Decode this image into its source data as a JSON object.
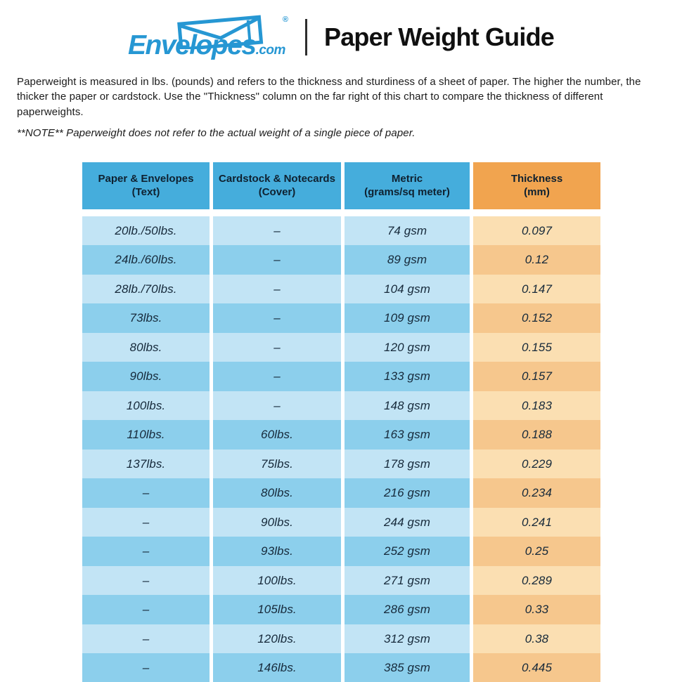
{
  "header": {
    "logo": {
      "brand": "Envelopes",
      "tld": ".com",
      "registered_mark": "®",
      "envelope_icon": "envelope-outline",
      "brand_color": "#2697d3"
    },
    "title": "Paper Weight Guide"
  },
  "intro": {
    "paragraph": "Paperweight is measured in lbs. (pounds) and refers to the thickness and sturdiness of a sheet of paper. The higher the number, the thicker the paper or cardstock. Use the \"Thickness\" column on the far right of this chart to compare the thickness of different paperweights.",
    "note": "**NOTE** Paperweight does not refer to the actual weight of a single piece of paper."
  },
  "colors": {
    "header_blue": "#45addc",
    "header_orange": "#f1a44f",
    "row_light_blue": "#c2e4f5",
    "row_dark_blue": "#8ccfec",
    "cell_light_orange": "#fbdfb2",
    "cell_dark_orange": "#f6c78d",
    "brand_blue": "#2697d3"
  },
  "chart_data": {
    "type": "table",
    "title": "Paper Weight Guide",
    "columns": [
      {
        "title": "Paper & Envelopes",
        "subtitle": "(Text)"
      },
      {
        "title": "Cardstock & Notecards",
        "subtitle": "(Cover)"
      },
      {
        "title": "Metric",
        "subtitle": "(grams/sq meter)"
      },
      {
        "title": "Thickness",
        "subtitle": "(mm)"
      }
    ],
    "rows": [
      [
        "20lb./50lbs.",
        "–",
        "74 gsm",
        "0.097"
      ],
      [
        "24lb./60lbs.",
        "–",
        "89 gsm",
        "0.12"
      ],
      [
        "28lb./70lbs.",
        "–",
        "104 gsm",
        "0.147"
      ],
      [
        "73lbs.",
        "–",
        "109 gsm",
        "0.152"
      ],
      [
        "80lbs.",
        "–",
        "120 gsm",
        "0.155"
      ],
      [
        "90lbs.",
        "–",
        "133 gsm",
        "0.157"
      ],
      [
        "100lbs.",
        "–",
        "148 gsm",
        "0.183"
      ],
      [
        "110lbs.",
        "60lbs.",
        "163 gsm",
        "0.188"
      ],
      [
        "137lbs.",
        "75lbs.",
        "178 gsm",
        "0.229"
      ],
      [
        "–",
        "80lbs.",
        "216 gsm",
        "0.234"
      ],
      [
        "–",
        "90lbs.",
        "244 gsm",
        "0.241"
      ],
      [
        "–",
        "93lbs.",
        "252 gsm",
        "0.25"
      ],
      [
        "–",
        "100lbs.",
        "271 gsm",
        "0.289"
      ],
      [
        "–",
        "105lbs.",
        "286 gsm",
        "0.33"
      ],
      [
        "–",
        "120lbs.",
        "312 gsm",
        "0.38"
      ],
      [
        "–",
        "146lbs.",
        "385 gsm",
        "0.445"
      ]
    ]
  }
}
